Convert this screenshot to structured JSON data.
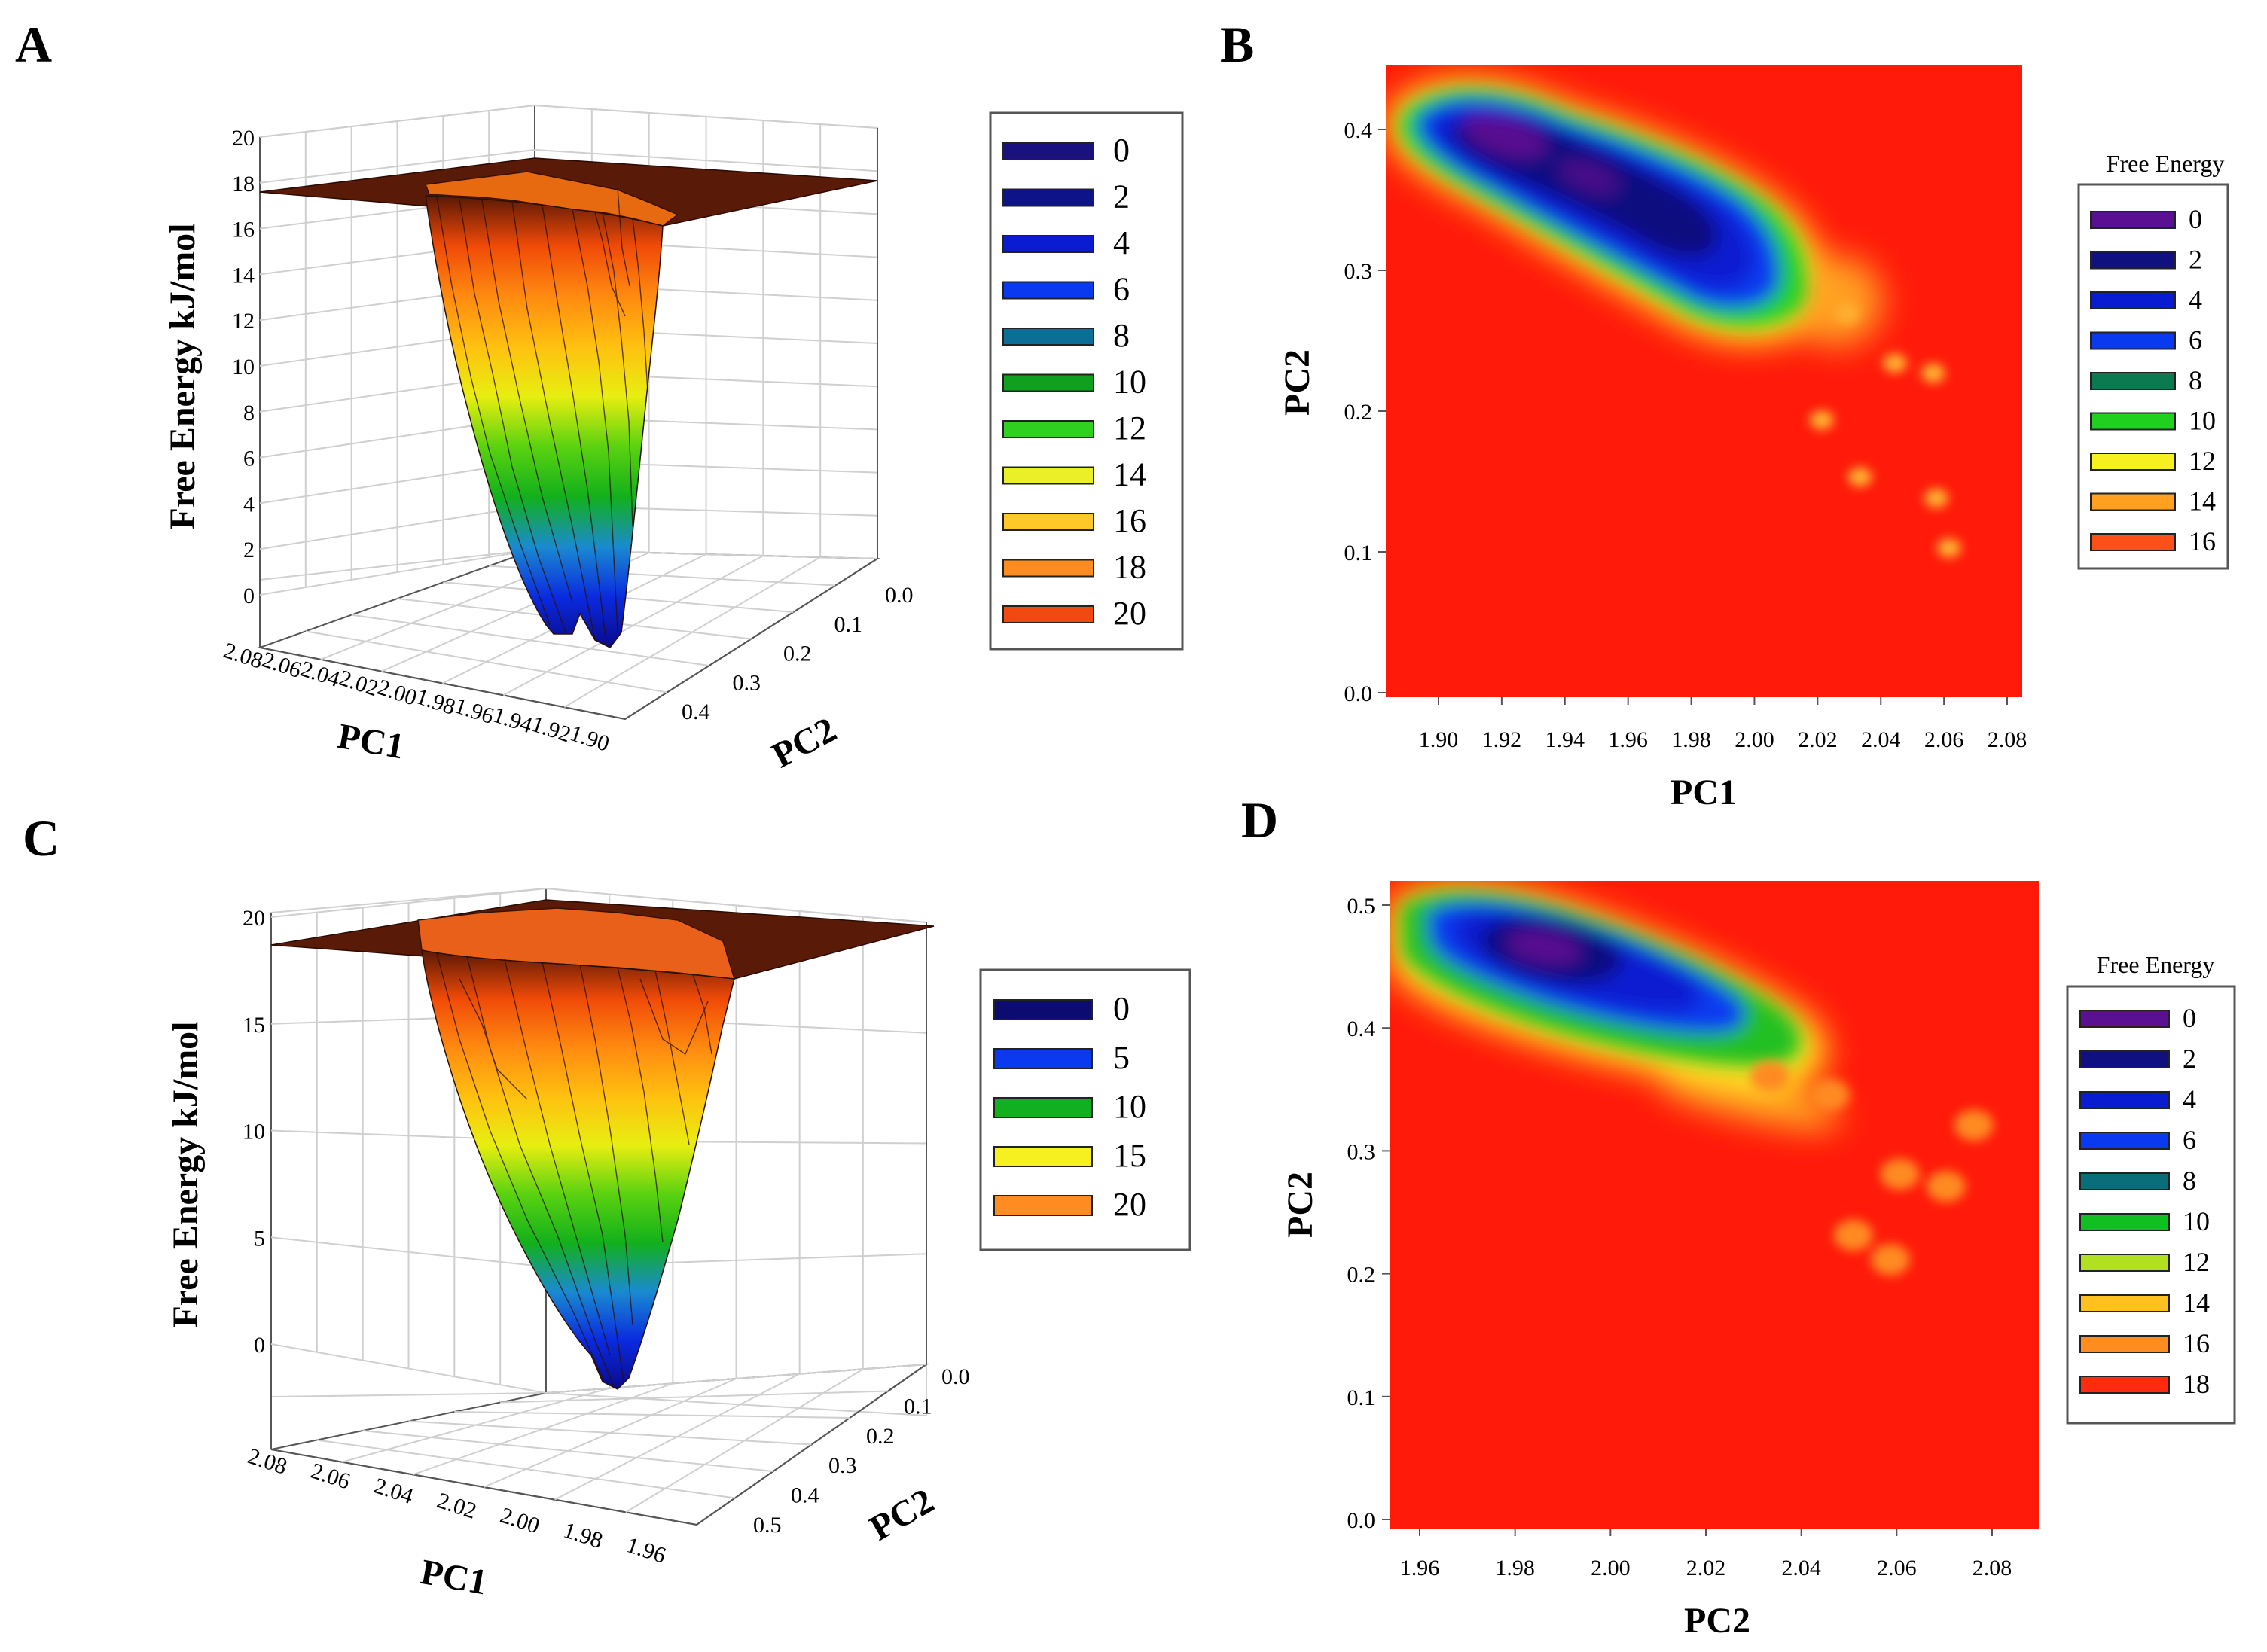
{
  "colors": {
    "ramp_3d": [
      "#0a0a8c",
      "#0a2adf",
      "#1a8ad0",
      "#12b01c",
      "#5ad210",
      "#e8ee10",
      "#ffc010",
      "#ff8a10",
      "#f04a08",
      "#5a1806"
    ],
    "heat_bg": "#ff1a0a"
  },
  "panels": {
    "A": {
      "label": "A",
      "zlabel": "Free Energy kJ/mol",
      "xlabel": "PC1",
      "ylabel": "PC2",
      "zticks": [
        "20",
        "18",
        "16",
        "14",
        "12",
        "10",
        "8",
        "6",
        "4",
        "2",
        "0"
      ],
      "pc1ticks": [
        "2.08",
        "2.06",
        "2.04",
        "2.02",
        "2.00",
        "1.98",
        "1.96",
        "1.94",
        "1.92",
        "1.90"
      ],
      "pc2ticks": [
        "0.0",
        "0.1",
        "0.2",
        "0.3",
        "0.4"
      ],
      "legend": {
        "items": [
          {
            "label": "0",
            "color": "#1a1080"
          },
          {
            "label": "2",
            "color": "#0c1488"
          },
          {
            "label": "4",
            "color": "#0a1cd0"
          },
          {
            "label": "6",
            "color": "#0a3af0"
          },
          {
            "label": "8",
            "color": "#0a6e96"
          },
          {
            "label": "10",
            "color": "#10a020"
          },
          {
            "label": "12",
            "color": "#30d020"
          },
          {
            "label": "14",
            "color": "#eaf028"
          },
          {
            "label": "16",
            "color": "#ffc828"
          },
          {
            "label": "18",
            "color": "#ff8c20"
          },
          {
            "label": "20",
            "color": "#f04a10"
          }
        ]
      }
    },
    "B": {
      "label": "B",
      "xlabel": "PC1",
      "ylabel": "PC2",
      "xticks": [
        "1.90",
        "1.92",
        "1.94",
        "1.96",
        "1.98",
        "2.00",
        "2.02",
        "2.04",
        "2.06",
        "2.08"
      ],
      "yticks": [
        "0.0",
        "0.1",
        "0.2",
        "0.3",
        "0.4"
      ],
      "legend": {
        "title": "Free Energy",
        "items": [
          {
            "label": "0",
            "color": "#5a1090"
          },
          {
            "label": "2",
            "color": "#101080"
          },
          {
            "label": "4",
            "color": "#0a1cd0"
          },
          {
            "label": "6",
            "color": "#0a3af0"
          },
          {
            "label": "8",
            "color": "#0a7a50"
          },
          {
            "label": "10",
            "color": "#20d020"
          },
          {
            "label": "12",
            "color": "#f6f020"
          },
          {
            "label": "14",
            "color": "#ffa020"
          },
          {
            "label": "16",
            "color": "#ff5018"
          }
        ]
      }
    },
    "C": {
      "label": "C",
      "zlabel": "Free Energy kJ/mol",
      "xlabel": "PC1",
      "ylabel": "PC2",
      "zticks": [
        "20",
        "15",
        "10",
        "5",
        "0"
      ],
      "pc1ticks": [
        "2.08",
        "2.06",
        "2.04",
        "2.02",
        "2.00",
        "1.98",
        "1.96"
      ],
      "pc2ticks": [
        "0.0",
        "0.1",
        "0.2",
        "0.3",
        "0.4",
        "0.5"
      ],
      "legend": {
        "items": [
          {
            "label": "0",
            "color": "#0c0c70"
          },
          {
            "label": "5",
            "color": "#0a3af0"
          },
          {
            "label": "10",
            "color": "#10b020"
          },
          {
            "label": "15",
            "color": "#f6f020"
          },
          {
            "label": "20",
            "color": "#ff8c20"
          }
        ]
      }
    },
    "D": {
      "label": "D",
      "xlabel": "PC2",
      "ylabel": "PC2",
      "xticks": [
        "1.96",
        "1.98",
        "2.00",
        "2.02",
        "2.04",
        "2.06",
        "2.08"
      ],
      "yticks": [
        "0.0",
        "0.1",
        "0.2",
        "0.3",
        "0.4",
        "0.5"
      ],
      "legend": {
        "title": "Free Energy",
        "items": [
          {
            "label": "0",
            "color": "#5a1090"
          },
          {
            "label": "2",
            "color": "#101080"
          },
          {
            "label": "4",
            "color": "#0a1cd0"
          },
          {
            "label": "6",
            "color": "#0a3af0"
          },
          {
            "label": "8",
            "color": "#0a6e7a"
          },
          {
            "label": "10",
            "color": "#10c020"
          },
          {
            "label": "12",
            "color": "#b0e020"
          },
          {
            "label": "14",
            "color": "#ffc020"
          },
          {
            "label": "16",
            "color": "#ff8c20"
          },
          {
            "label": "18",
            "color": "#ff2a10"
          }
        ]
      }
    }
  },
  "chart_data": [
    {
      "panel": "A",
      "type": "surface",
      "title": "",
      "xlabel": "PC1",
      "ylabel": "PC2",
      "zlabel": "Free Energy kJ/mol",
      "xlim": [
        1.9,
        2.08
      ],
      "ylim": [
        0.0,
        0.4
      ],
      "zlim": [
        0,
        20
      ],
      "plateau": 17.5,
      "basin_minimum": {
        "pc1": 1.97,
        "pc2": 0.33,
        "energy": 0
      }
    },
    {
      "panel": "B",
      "type": "heatmap",
      "title": "",
      "xlabel": "PC1",
      "ylabel": "PC2",
      "legend_title": "Free Energy",
      "xlim": [
        1.885,
        2.085
      ],
      "ylim": [
        0.0,
        0.445
      ],
      "levels": [
        0,
        2,
        4,
        6,
        8,
        10,
        12,
        14,
        16
      ],
      "background_level": 16,
      "basin_centers": [
        [
          1.925,
          0.395
        ],
        [
          1.955,
          0.37
        ],
        [
          1.985,
          0.32
        ]
      ],
      "scatter_spots": [
        [
          2.03,
          0.27
        ],
        [
          2.045,
          0.235
        ],
        [
          2.057,
          0.228
        ],
        [
          2.022,
          0.195
        ],
        [
          2.034,
          0.155
        ],
        [
          2.058,
          0.14
        ],
        [
          2.062,
          0.105
        ]
      ]
    },
    {
      "panel": "C",
      "type": "surface",
      "title": "",
      "xlabel": "PC1",
      "ylabel": "PC2",
      "zlabel": "Free Energy kJ/mol",
      "xlim": [
        1.96,
        2.08
      ],
      "ylim": [
        0.0,
        0.5
      ],
      "zlim": [
        -2,
        20
      ],
      "plateau": 18.5,
      "basin_minimum": {
        "pc1": 2.0,
        "pc2": 0.46,
        "energy": -2
      }
    },
    {
      "panel": "D",
      "type": "heatmap",
      "title": "",
      "xlabel": "PC2",
      "ylabel": "PC2",
      "legend_title": "Free Energy",
      "xlim": [
        1.95,
        2.09
      ],
      "ylim": [
        0.0,
        0.53
      ],
      "levels": [
        0,
        2,
        4,
        6,
        8,
        10,
        12,
        14,
        16,
        18
      ],
      "background_level": 18,
      "basin_centers": [
        [
          1.99,
          0.475
        ],
        [
          2.005,
          0.465
        ],
        [
          2.025,
          0.43
        ]
      ],
      "scatter_spots": [
        [
          2.032,
          0.37
        ],
        [
          2.045,
          0.355
        ],
        [
          2.06,
          0.29
        ],
        [
          2.07,
          0.28
        ],
        [
          2.076,
          0.33
        ],
        [
          2.05,
          0.24
        ],
        [
          2.058,
          0.22
        ]
      ]
    }
  ]
}
